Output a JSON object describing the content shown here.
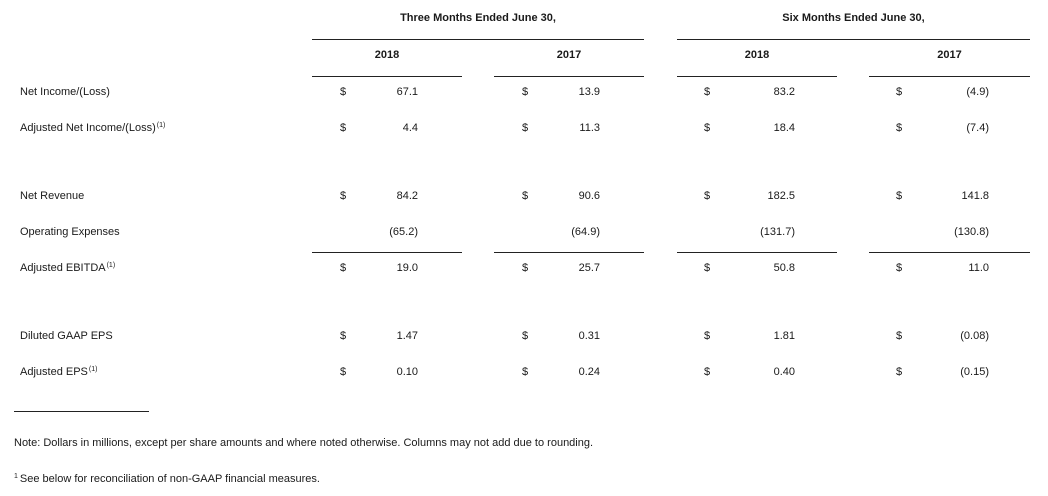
{
  "header": {
    "period_three": "Three Months Ended June 30,",
    "period_six": "Six Months Ended June 30,",
    "years": [
      "2018",
      "2017",
      "2018",
      "2017"
    ]
  },
  "currency_symbol": "$",
  "rows": [
    {
      "label": "Net Income/(Loss)",
      "footnote": "",
      "dollar": true,
      "values": [
        "67.1",
        "13.9",
        "83.2",
        "(4.9)"
      ]
    },
    {
      "label": "Adjusted Net Income/(Loss)",
      "footnote": "(1)",
      "dollar": true,
      "values": [
        "4.4",
        "11.3",
        "18.4",
        "(7.4)"
      ]
    },
    {
      "label": "Net Revenue",
      "footnote": "",
      "dollar": true,
      "values": [
        "84.2",
        "90.6",
        "182.5",
        "141.8"
      ]
    },
    {
      "label": "Operating Expenses",
      "footnote": "",
      "dollar": false,
      "values": [
        "(65.2)",
        "(64.9)",
        "(131.7)",
        "(130.8)"
      ]
    },
    {
      "label": "Adjusted EBITDA",
      "footnote": "(1)",
      "dollar": true,
      "values": [
        "19.0",
        "25.7",
        "50.8",
        "11.0"
      ]
    },
    {
      "label": "Diluted GAAP EPS",
      "footnote": "",
      "dollar": true,
      "values": [
        "1.47",
        "0.31",
        "1.81",
        "(0.08)"
      ]
    },
    {
      "label": "Adjusted EPS",
      "footnote": "(1)",
      "dollar": true,
      "values": [
        "0.10",
        "0.24",
        "0.40",
        "(0.15)"
      ]
    }
  ],
  "notes": {
    "note": "Note:  Dollars in millions, except per share amounts and where noted otherwise.  Columns may not add due to rounding.",
    "footnote_marker": "1",
    "footnote_text": "See below for reconciliation of non-GAAP financial measures."
  }
}
